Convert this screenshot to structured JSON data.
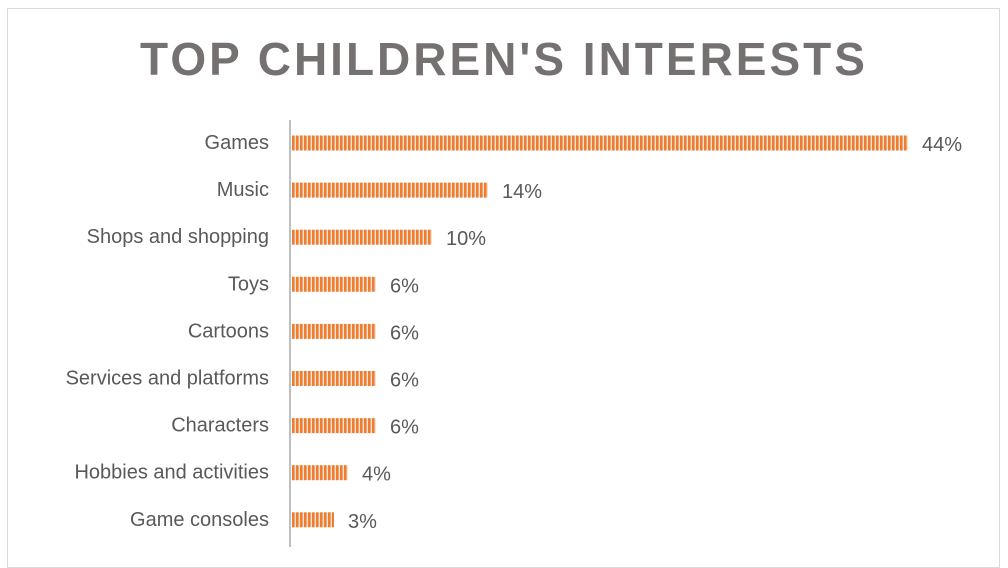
{
  "chart_data": {
    "type": "bar",
    "orientation": "horizontal",
    "title": "TOP CHILDREN'S INTERESTS",
    "categories": [
      "Games",
      "Music",
      "Shops and shopping",
      "Toys",
      "Cartoons",
      "Services and platforms",
      "Characters",
      "Hobbies and activities",
      "Game consoles"
    ],
    "values": [
      44,
      14,
      10,
      6,
      6,
      6,
      6,
      4,
      3
    ],
    "value_labels": [
      "44%",
      "14%",
      "10%",
      "6%",
      "6%",
      "6%",
      "6%",
      "4%",
      "3%"
    ],
    "value_unit": "%",
    "xlabel": "",
    "ylabel": "",
    "grid": false,
    "legend": "none",
    "bar_color": "#ed7d31",
    "bar_pattern": "vertical-stripes",
    "title_color": "#767171",
    "label_color": "#595959",
    "axis_color": "#bfbfbf"
  }
}
